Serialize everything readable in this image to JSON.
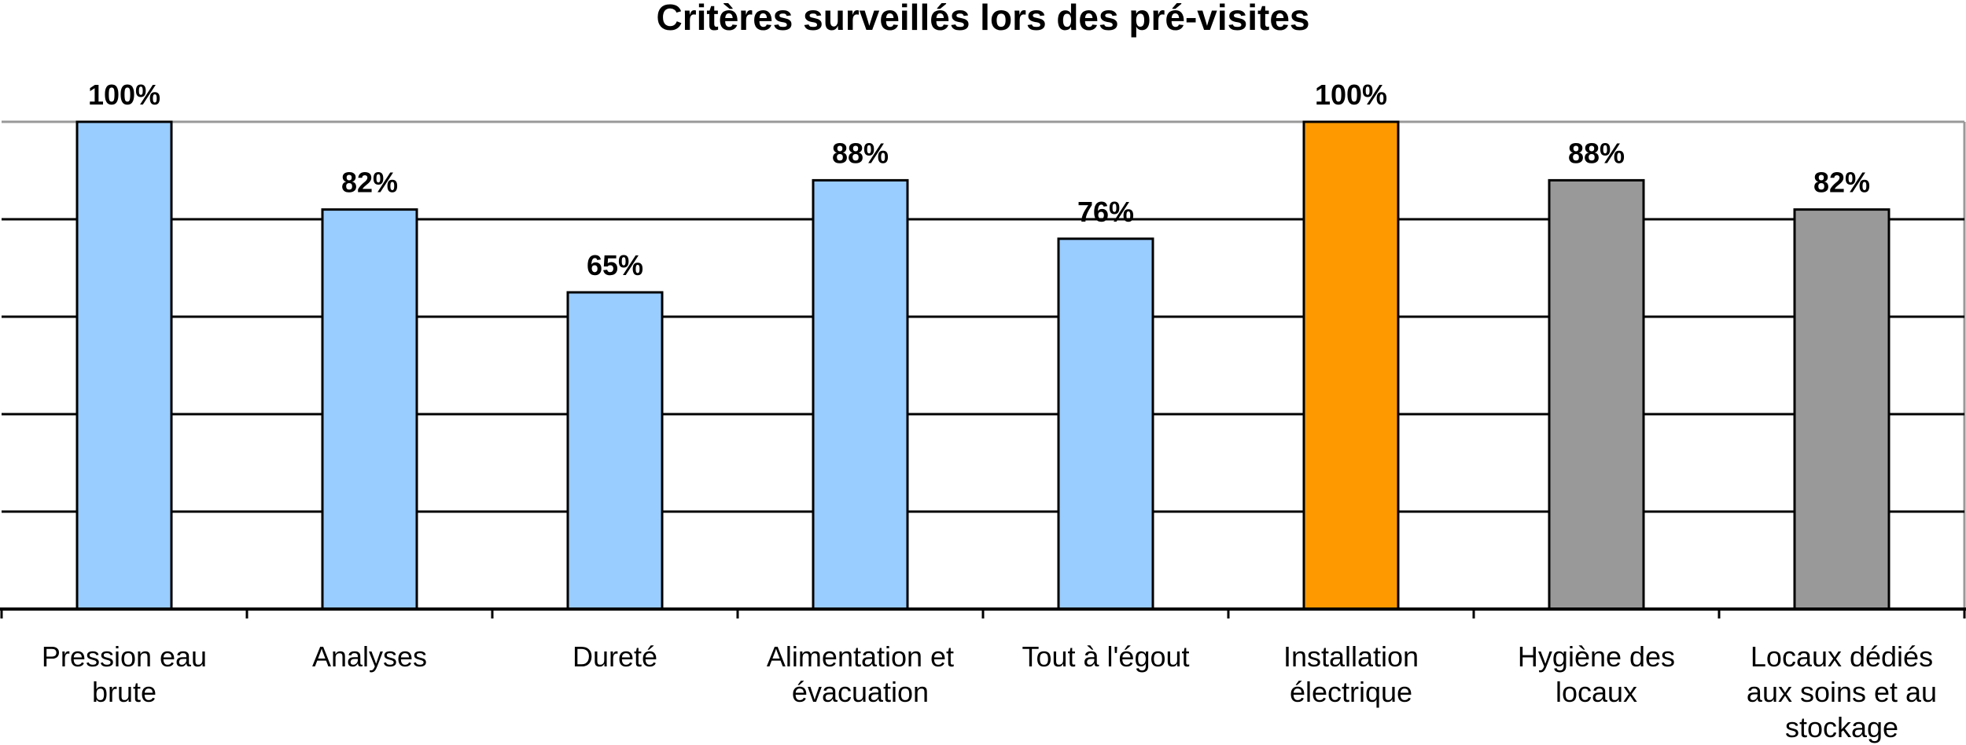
{
  "chart_data": {
    "type": "bar",
    "title": "Critères surveillés lors des pré-visites",
    "xlabel": "",
    "ylabel": "",
    "ylim": [
      0,
      100
    ],
    "grid": true,
    "categories": [
      [
        "Pression eau",
        "brute"
      ],
      [
        "Analyses"
      ],
      [
        "Dureté"
      ],
      [
        "Alimentation et",
        "évacuation"
      ],
      [
        "Tout à l'égout"
      ],
      [
        "Installation",
        "électrique"
      ],
      [
        "Hygiène des",
        "locaux"
      ],
      [
        "Locaux dédiés",
        "aux soins et au",
        "stockage"
      ]
    ],
    "values": [
      100,
      82,
      65,
      88,
      76,
      100,
      88,
      82
    ],
    "value_labels": [
      "100%",
      "82%",
      "65%",
      "88%",
      "76%",
      "100%",
      "88%",
      "82%"
    ],
    "colors": [
      "#99ccff",
      "#99ccff",
      "#99ccff",
      "#99ccff",
      "#99ccff",
      "#ff9900",
      "#999999",
      "#999999"
    ]
  }
}
